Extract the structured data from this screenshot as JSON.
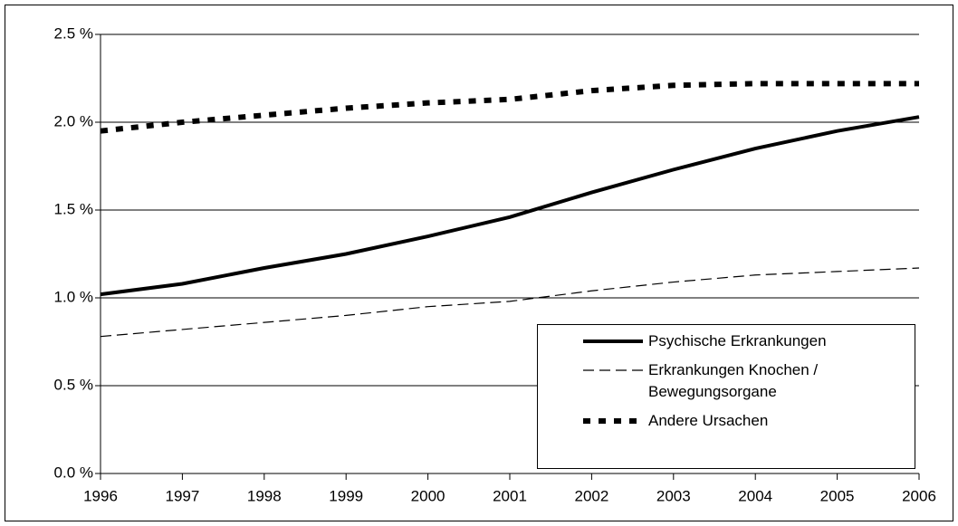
{
  "chart_data": {
    "type": "line",
    "x": [
      1996,
      1997,
      1998,
      1999,
      2000,
      2001,
      2002,
      2003,
      2004,
      2005,
      2006
    ],
    "xlim": [
      1996,
      2006
    ],
    "xticks": [
      1996,
      1997,
      1998,
      1999,
      2000,
      2001,
      2002,
      2003,
      2004,
      2005,
      2006
    ],
    "ylim": [
      0,
      2.5
    ],
    "yticks": [
      {
        "value": 0,
        "label": "0.0 %"
      },
      {
        "value": 0.5,
        "label": "0.5 %"
      },
      {
        "value": 1,
        "label": "1.0 %"
      },
      {
        "value": 1.5,
        "label": "1.5 %"
      },
      {
        "value": 2,
        "label": "2.0 %"
      },
      {
        "value": 2.5,
        "label": "2.5 %"
      }
    ],
    "grid": true,
    "legend": "lower right",
    "series": [
      {
        "name": "Psychische Erkrankungen",
        "color": "#000000",
        "style": "solid",
        "values": [
          1.02,
          1.08,
          1.17,
          1.25,
          1.35,
          1.46,
          1.6,
          1.73,
          1.85,
          1.95,
          2.03
        ]
      },
      {
        "name": "Erkrankungen Knochen / Bewegungsorgane",
        "color": "#000000",
        "style": "dashed",
        "values": [
          0.78,
          0.82,
          0.86,
          0.9,
          0.95,
          0.98,
          1.04,
          1.09,
          1.13,
          1.15,
          1.17
        ]
      },
      {
        "name": "Andere Ursachen",
        "color": "#000000",
        "style": "dotted",
        "values": [
          1.95,
          2.0,
          2.04,
          2.08,
          2.11,
          2.13,
          2.18,
          2.21,
          2.22,
          2.22,
          2.22
        ]
      }
    ]
  }
}
